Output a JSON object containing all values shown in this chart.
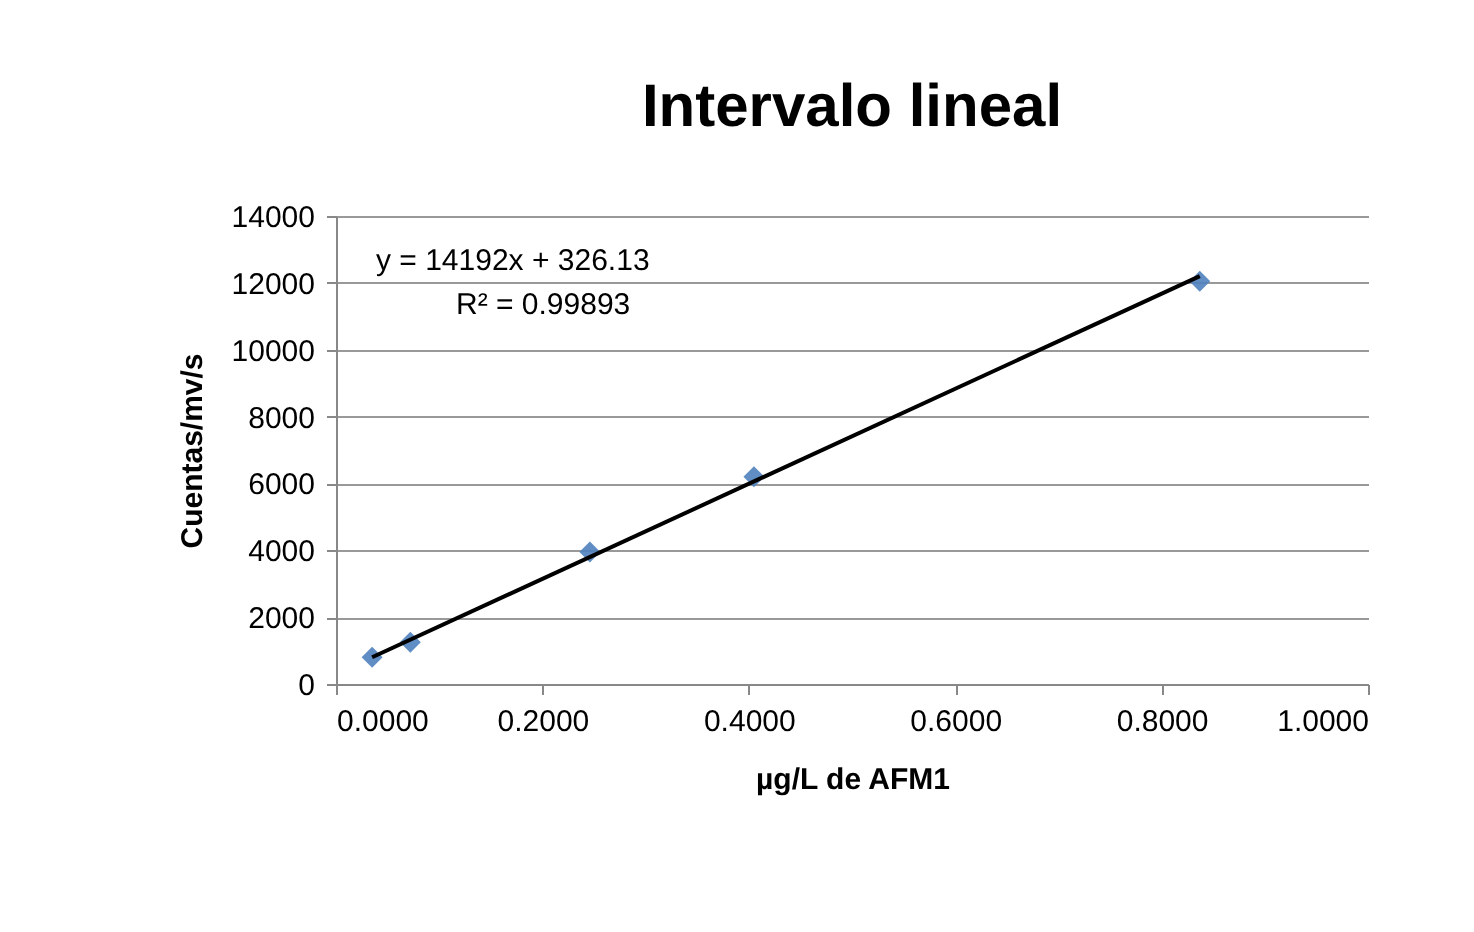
{
  "chart_data": {
    "type": "scatter",
    "title": "Intervalo lineal",
    "xlabel": "µg/L de AFM1",
    "ylabel": "Cuentas/mv/s",
    "x": [
      0.035,
      0.072,
      0.246,
      0.405,
      0.837
    ],
    "series": [
      {
        "color": "#4f81bd",
        "marker": "diamond",
        "values": [
          800,
          1250,
          3950,
          6200,
          12050
        ]
      },
      {
        "type": "line",
        "color": "#000000",
        "marker": "none",
        "x": [
          0.035,
          0.837
        ],
        "values": [
          800,
          12200
        ]
      }
    ],
    "xlim": [
      0,
      1
    ],
    "ylim": [
      0,
      14000
    ],
    "xticks": [
      {
        "value": 0,
        "label": "0.0000"
      },
      {
        "value": 0.2,
        "label": "0.2000"
      },
      {
        "value": 0.4,
        "label": "0.4000"
      },
      {
        "value": 0.6,
        "label": "0.6000"
      },
      {
        "value": 0.8,
        "label": "0.8000"
      },
      {
        "value": 1,
        "label": "1.0000"
      }
    ],
    "yticks": [
      0,
      2000,
      4000,
      6000,
      8000,
      10000,
      12000,
      14000
    ],
    "annotations": [
      "y = 14192x + 326.13",
      "R² = 0.99893"
    ],
    "grid": "y",
    "line_style": "solid"
  }
}
